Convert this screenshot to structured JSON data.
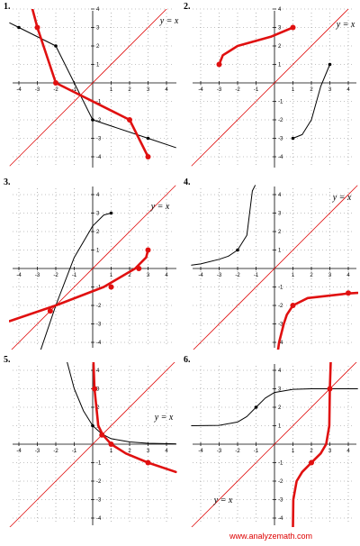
{
  "footer": "www.analyzemath.com",
  "colors": {
    "graph": "#000000",
    "inverse": "#e01010",
    "identity": "#e01010",
    "grid": "#888888"
  },
  "chart_data": [
    {
      "type": "line",
      "label": "1.",
      "identity_label": "y = x",
      "xlim": [
        -4.5,
        4.5
      ],
      "ylim": [
        -4.5,
        4.5
      ],
      "x_ticks": [
        -4,
        -3,
        -2,
        -1,
        1,
        2,
        3,
        4
      ],
      "y_ticks": [
        -4,
        -3,
        -2,
        -1,
        1,
        2,
        3,
        4
      ],
      "grid": true,
      "series": [
        {
          "role": "graph",
          "x": [
            -4.5,
            -4,
            -2,
            0,
            3,
            4.5
          ],
          "y": [
            3.25,
            3,
            2,
            -2,
            -3,
            -3.5
          ],
          "points": [
            [
              -4,
              3
            ],
            [
              -2,
              2
            ],
            [
              0,
              -2
            ],
            [
              3,
              -3
            ]
          ]
        },
        {
          "role": "inverse",
          "x": [
            -3.4,
            -3,
            -2,
            2,
            3
          ],
          "y": [
            4.5,
            3,
            0,
            -2,
            -4
          ],
          "points": [
            [
              -3,
              3
            ],
            [
              -2,
              0
            ],
            [
              2,
              -2
            ],
            [
              3,
              -4
            ]
          ]
        }
      ]
    },
    {
      "type": "line",
      "label": "2.",
      "identity_label": "y = x",
      "xlim": [
        -4.5,
        4.5
      ],
      "ylim": [
        -4.5,
        4.5
      ],
      "x_ticks": [
        -4,
        -3,
        -2,
        -1,
        1,
        2,
        3,
        4
      ],
      "y_ticks": [
        -4,
        -3,
        -2,
        -1,
        1,
        2,
        3,
        4
      ],
      "grid": true,
      "series": [
        {
          "role": "graph",
          "x": [
            1,
            1.5,
            2,
            2.5,
            3
          ],
          "y": [
            -3,
            -2.8,
            -2,
            -0.2,
            1
          ],
          "points": [
            [
              1,
              -3
            ],
            [
              3,
              1
            ]
          ]
        },
        {
          "role": "inverse",
          "x": [
            -3,
            -2.8,
            -2,
            -0.2,
            1
          ],
          "y": [
            1,
            1.5,
            2,
            2.5,
            3
          ],
          "points": [
            [
              -3,
              1
            ],
            [
              1,
              3
            ]
          ]
        }
      ]
    },
    {
      "type": "line",
      "label": "3.",
      "identity_label": "y = x",
      "xlim": [
        -4.5,
        4.5
      ],
      "ylim": [
        -4.5,
        4.5
      ],
      "x_ticks": [
        -4,
        -3,
        -2,
        -1,
        1,
        2,
        3,
        4
      ],
      "y_ticks": [
        -4,
        -3,
        -2,
        -1,
        1,
        2,
        3,
        4
      ],
      "grid": true,
      "series": [
        {
          "role": "graph",
          "x": [
            -2.85,
            -2,
            -1,
            0,
            0.6,
            1
          ],
          "y": [
            -4.5,
            -2,
            0.6,
            2.3,
            2.9,
            3
          ],
          "points": [
            [
              -2.3,
              -2.3
            ],
            [
              1,
              3
            ]
          ]
        },
        {
          "role": "inverse",
          "x": [
            -4.5,
            -2,
            0.6,
            2.3,
            2.9,
            3
          ],
          "y": [
            -2.85,
            -2,
            -1,
            0,
            0.6,
            1
          ],
          "points": [
            [
              -2.3,
              -2.3
            ],
            [
              1,
              -1
            ],
            [
              2.5,
              0
            ],
            [
              3,
              1
            ]
          ]
        }
      ]
    },
    {
      "type": "line",
      "label": "4.",
      "identity_label": "y = x",
      "xlim": [
        -4.5,
        4.5
      ],
      "ylim": [
        -4.5,
        4.5
      ],
      "x_ticks": [
        -4,
        -3,
        -2,
        -1,
        1,
        2,
        3,
        4
      ],
      "y_ticks": [
        -4,
        -3,
        -2,
        -1,
        1,
        2,
        3,
        4
      ],
      "grid": true,
      "series": [
        {
          "role": "graph",
          "x": [
            -4.5,
            -4,
            -3,
            -2.5,
            -2,
            -1.5,
            -1.2,
            -1.05
          ],
          "y": [
            0.18,
            0.25,
            0.5,
            0.67,
            1,
            1.8,
            4.2,
            4.5
          ],
          "points": [
            [
              -2,
              1
            ]
          ]
        },
        {
          "role": "inverse",
          "x": [
            0.18,
            0.25,
            0.5,
            0.67,
            1,
            1.8,
            4,
            4.5
          ],
          "y": [
            -4.5,
            -4,
            -3,
            -2.5,
            -2,
            -1.6,
            -1.35,
            -1.32
          ],
          "points": [
            [
              1,
              -2
            ],
            [
              4,
              -1.33
            ]
          ]
        }
      ]
    },
    {
      "type": "line",
      "label": "5.",
      "identity_label": "y = x",
      "xlim": [
        -4.5,
        4.5
      ],
      "ylim": [
        -4.5,
        4.5
      ],
      "x_ticks": [
        -4,
        -3,
        -2,
        -1,
        1,
        2,
        3,
        4
      ],
      "y_ticks": [
        -4,
        -3,
        -2,
        -1,
        1,
        2,
        3,
        4
      ],
      "grid": true,
      "series": [
        {
          "role": "graph",
          "x": [
            -1.4,
            -1,
            -0.5,
            0,
            0.5,
            1,
            2,
            3,
            4.5
          ],
          "y": [
            4.5,
            3,
            1.8,
            1,
            0.55,
            0.3,
            0.12,
            0.05,
            0.02
          ],
          "points": [
            [
              0,
              1
            ]
          ]
        },
        {
          "role": "inverse",
          "x": [
            0.04,
            0.1,
            0.3,
            0.55,
            1,
            1.8,
            3,
            4.5
          ],
          "y": [
            4.5,
            3,
            1,
            0.5,
            0,
            -0.5,
            -1,
            -1.5
          ],
          "points": [
            [
              0.1,
              3
            ],
            [
              0.5,
              0.5
            ],
            [
              1,
              0
            ],
            [
              3,
              -1
            ]
          ]
        }
      ]
    },
    {
      "type": "line",
      "label": "6.",
      "identity_label": "y = x",
      "xlim": [
        -4.5,
        4.5
      ],
      "ylim": [
        -4.5,
        4.5
      ],
      "x_ticks": [
        -4,
        -3,
        -2,
        -1,
        1,
        2,
        3,
        4
      ],
      "y_ticks": [
        -4,
        -3,
        -2,
        -1,
        1,
        2,
        3,
        4
      ],
      "grid": true,
      "series": [
        {
          "role": "graph",
          "x": [
            -4.5,
            -3,
            -2,
            -1.5,
            -1,
            -0.5,
            0,
            1,
            2,
            3,
            4.5
          ],
          "y": [
            1,
            1.02,
            1.2,
            1.5,
            2,
            2.5,
            2.8,
            2.97,
            3,
            3,
            3
          ],
          "points": [
            [
              -1,
              2
            ],
            [
              3,
              3
            ]
          ]
        },
        {
          "role": "inverse",
          "x": [
            1,
            1.02,
            1.2,
            1.5,
            2,
            2.5,
            2.8,
            2.97,
            3,
            3.05
          ],
          "y": [
            -4.5,
            -3,
            -2,
            -1.5,
            -1,
            -0.5,
            0,
            1,
            3,
            4.5
          ],
          "points": [
            [
              2,
              -1
            ],
            [
              3,
              3
            ]
          ]
        }
      ]
    }
  ]
}
